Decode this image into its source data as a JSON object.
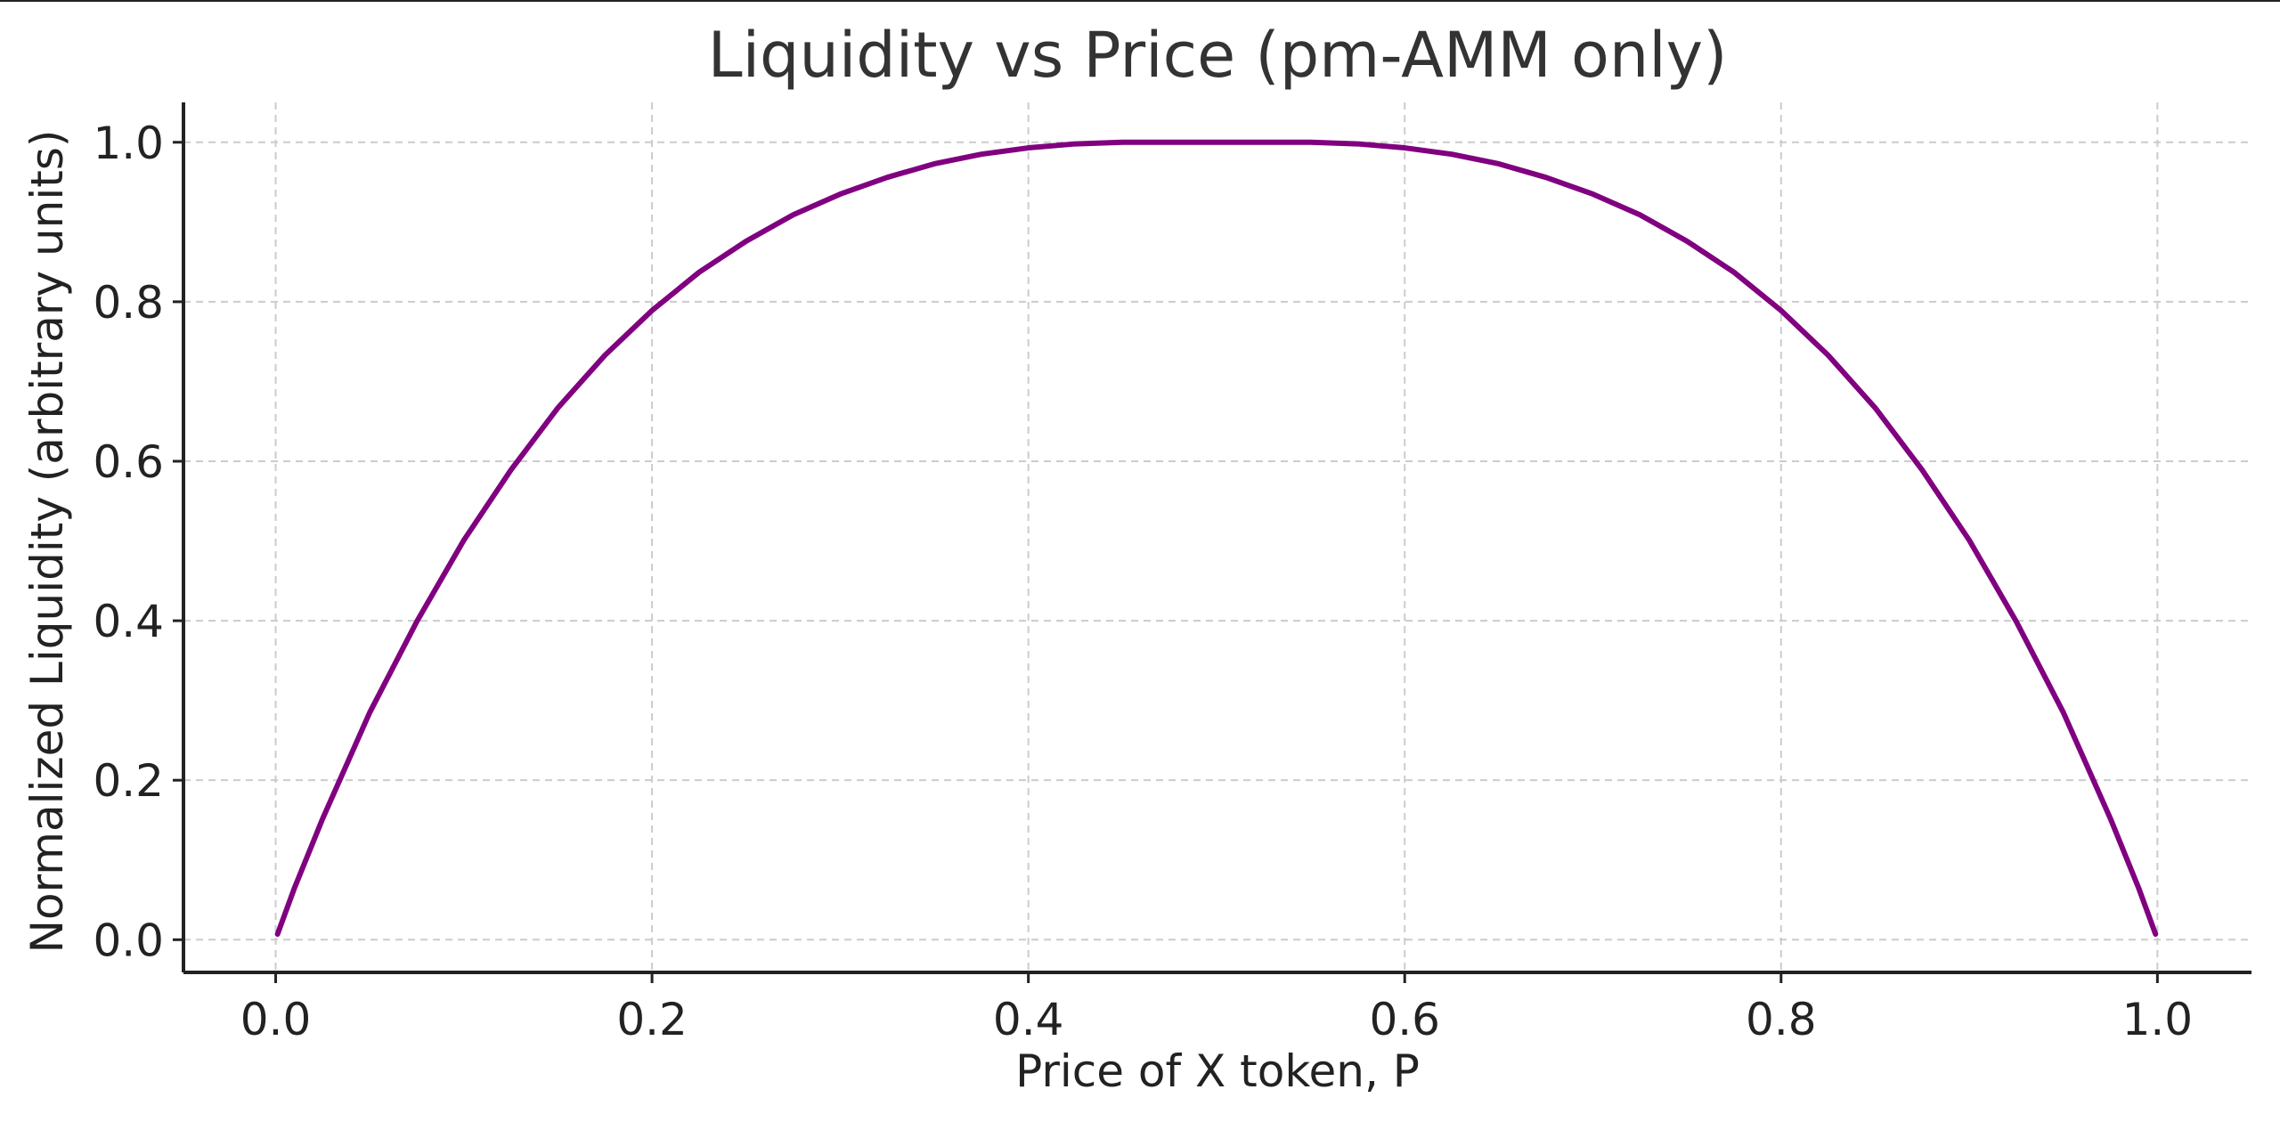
{
  "chart_data": {
    "type": "line",
    "title": "Liquidity vs Price (pm-AMM only)",
    "xlabel": "Price of X token, P",
    "ylabel": "Normalized Liquidity (arbitrary units)",
    "xlim": [
      -0.049,
      1.05
    ],
    "ylim": [
      -0.041,
      1.05
    ],
    "xticks": [
      0.0,
      0.2,
      0.4,
      0.6,
      0.8,
      1.0
    ],
    "xtick_labels": [
      "0.0",
      "0.2",
      "0.4",
      "0.6",
      "0.8",
      "1.0"
    ],
    "yticks": [
      0.0,
      0.2,
      0.4,
      0.6,
      0.8,
      1.0
    ],
    "ytick_labels": [
      "0.0",
      "0.2",
      "0.4",
      "0.6",
      "0.8",
      "1.0"
    ],
    "grid": true,
    "legend": "none",
    "series": [
      {
        "color": "#800080",
        "x": [
          0.001,
          0.01,
          0.025,
          0.05,
          0.075,
          0.1,
          0.125,
          0.15,
          0.175,
          0.2,
          0.225,
          0.25,
          0.275,
          0.3,
          0.325,
          0.35,
          0.375,
          0.4,
          0.425,
          0.45,
          0.475,
          0.5,
          0.525,
          0.55,
          0.575,
          0.6,
          0.625,
          0.65,
          0.675,
          0.7,
          0.725,
          0.75,
          0.775,
          0.8,
          0.825,
          0.85,
          0.875,
          0.9,
          0.925,
          0.95,
          0.975,
          0.99,
          0.999
        ],
        "y": [
          0.007,
          0.065,
          0.152,
          0.285,
          0.399,
          0.501,
          0.589,
          0.667,
          0.733,
          0.789,
          0.837,
          0.876,
          0.909,
          0.935,
          0.956,
          0.973,
          0.985,
          0.993,
          0.998,
          1.0,
          1.0,
          1.0,
          1.0,
          1.0,
          0.998,
          0.993,
          0.985,
          0.973,
          0.956,
          0.935,
          0.909,
          0.876,
          0.837,
          0.789,
          0.733,
          0.667,
          0.589,
          0.501,
          0.399,
          0.285,
          0.152,
          0.065,
          0.007
        ]
      }
    ]
  }
}
